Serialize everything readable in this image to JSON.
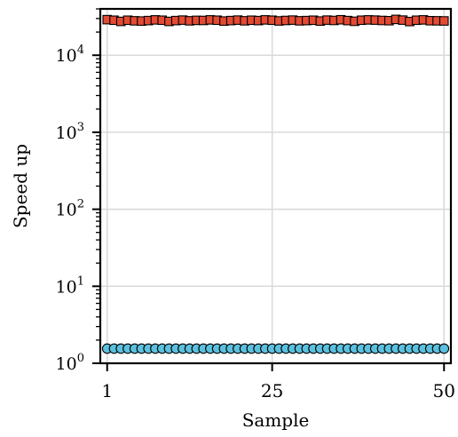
{
  "chart_data": {
    "type": "scatter",
    "title": "",
    "xlabel": "Sample",
    "ylabel": "Speed up",
    "y_scale": "log",
    "grid": true,
    "legend": "none",
    "xlim": [
      0,
      51
    ],
    "ylim": [
      1,
      40000
    ],
    "x_ticks": [
      {
        "value": 1,
        "label": "1"
      },
      {
        "value": 25,
        "label": "25"
      },
      {
        "value": 50,
        "label": "50"
      }
    ],
    "y_ticks": [
      {
        "value": 1,
        "base": "10",
        "exp": "0"
      },
      {
        "value": 10,
        "base": "10",
        "exp": "1"
      },
      {
        "value": 100,
        "base": "10",
        "exp": "2"
      },
      {
        "value": 1000,
        "base": "10",
        "exp": "3"
      },
      {
        "value": 10000,
        "base": "10",
        "exp": "4"
      }
    ],
    "series": [
      {
        "marker": "square",
        "color": "#e34a33",
        "edge_color": "#000000",
        "x": [
          1,
          2,
          3,
          4,
          5,
          6,
          7,
          8,
          9,
          10,
          11,
          12,
          13,
          14,
          15,
          16,
          17,
          18,
          19,
          20,
          21,
          22,
          23,
          24,
          25,
          26,
          27,
          28,
          29,
          30,
          31,
          32,
          33,
          34,
          35,
          36,
          37,
          38,
          39,
          40,
          41,
          42,
          43,
          44,
          45,
          46,
          47,
          48,
          49,
          50
        ],
        "y": [
          29000,
          28500,
          27500,
          28500,
          28000,
          27800,
          28200,
          28800,
          28500,
          27500,
          28200,
          28600,
          28000,
          28400,
          28300,
          28800,
          28500,
          27800,
          28200,
          28600,
          28000,
          28500,
          28200,
          28800,
          28500,
          27900,
          28300,
          28600,
          28000,
          28200,
          28500,
          27800,
          28600,
          28300,
          28900,
          28200,
          27600,
          28500,
          28800,
          28600,
          28300,
          28100,
          29200,
          28600,
          27400,
          28500,
          28800,
          28100,
          28000,
          27900
        ]
      },
      {
        "marker": "circle",
        "color": "#5bc0de",
        "edge_color": "#000000",
        "x": [
          1,
          2,
          3,
          4,
          5,
          6,
          7,
          8,
          9,
          10,
          11,
          12,
          13,
          14,
          15,
          16,
          17,
          18,
          19,
          20,
          21,
          22,
          23,
          24,
          25,
          26,
          27,
          28,
          29,
          30,
          31,
          32,
          33,
          34,
          35,
          36,
          37,
          38,
          39,
          40,
          41,
          42,
          43,
          44,
          45,
          46,
          47,
          48,
          49,
          50
        ],
        "y": [
          1.55,
          1.55,
          1.55,
          1.55,
          1.55,
          1.55,
          1.55,
          1.55,
          1.55,
          1.55,
          1.55,
          1.55,
          1.55,
          1.55,
          1.55,
          1.55,
          1.55,
          1.55,
          1.55,
          1.55,
          1.55,
          1.55,
          1.55,
          1.55,
          1.55,
          1.55,
          1.55,
          1.55,
          1.55,
          1.55,
          1.55,
          1.55,
          1.55,
          1.55,
          1.55,
          1.55,
          1.55,
          1.55,
          1.55,
          1.55,
          1.55,
          1.55,
          1.55,
          1.55,
          1.55,
          1.55,
          1.55,
          1.55,
          1.55,
          1.55
        ]
      }
    ]
  }
}
